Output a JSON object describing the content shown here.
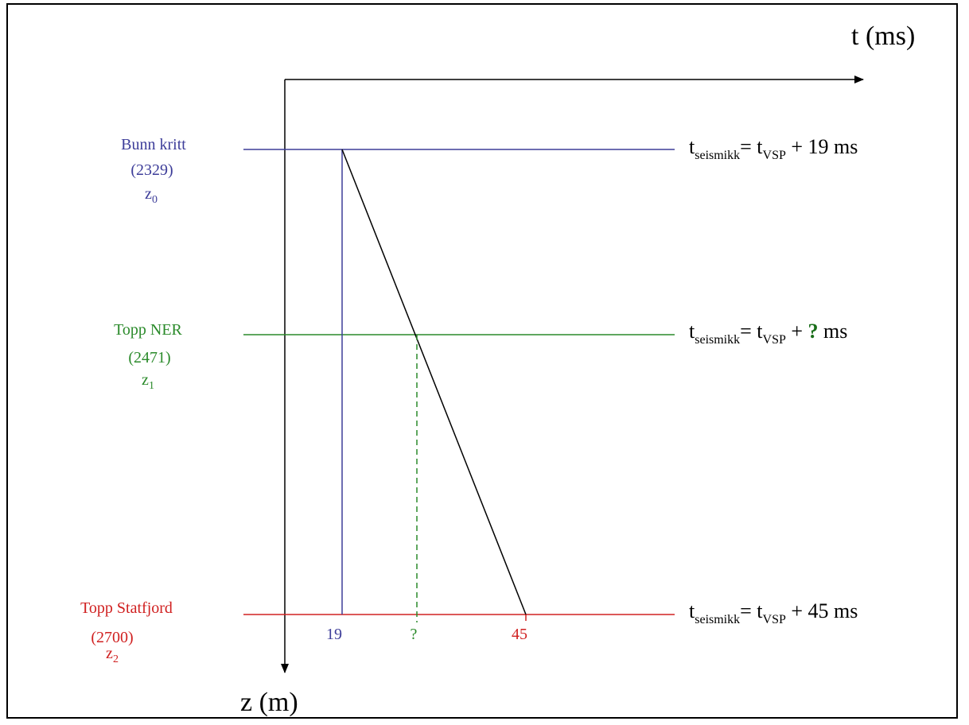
{
  "axes": {
    "time_label": "t (ms)",
    "depth_label": "z (m)"
  },
  "horizons": [
    {
      "name": "Bunn kritt",
      "depth": "(2329)",
      "z_var": "z",
      "z_sub": "0",
      "color": "#3d3d99",
      "equation": {
        "t": "t",
        "sub1": "seismikk",
        "eq": "= t",
        "sub2": "VSP",
        "rest_pre": " + ",
        "value": "19",
        "rest_post": " ms"
      }
    },
    {
      "name": "Topp NER",
      "depth": "(2471)",
      "z_var": "z",
      "z_sub": "1",
      "color": "#2a8a2a",
      "equation": {
        "t": "t",
        "sub1": "seismikk",
        "eq": "= t",
        "sub2": "VSP",
        "rest_pre": " + ",
        "value": "?",
        "rest_post": " ms"
      }
    },
    {
      "name": "Topp Statfjord",
      "depth": "(2700)",
      "z_var": "z",
      "z_sub": "2",
      "color": "#d02020",
      "equation": {
        "t": "t",
        "sub1": "seismikk",
        "eq": "= t",
        "sub2": "VSP",
        "rest_pre": " + ",
        "value": "45",
        "rest_post": " ms"
      }
    }
  ],
  "ticks": [
    {
      "label": "19",
      "color": "#3d3d99"
    },
    {
      "label": "?",
      "color": "#2a8a2a"
    },
    {
      "label": "45",
      "color": "#d02020"
    }
  ],
  "question_mark_color": "#1a6e1a"
}
